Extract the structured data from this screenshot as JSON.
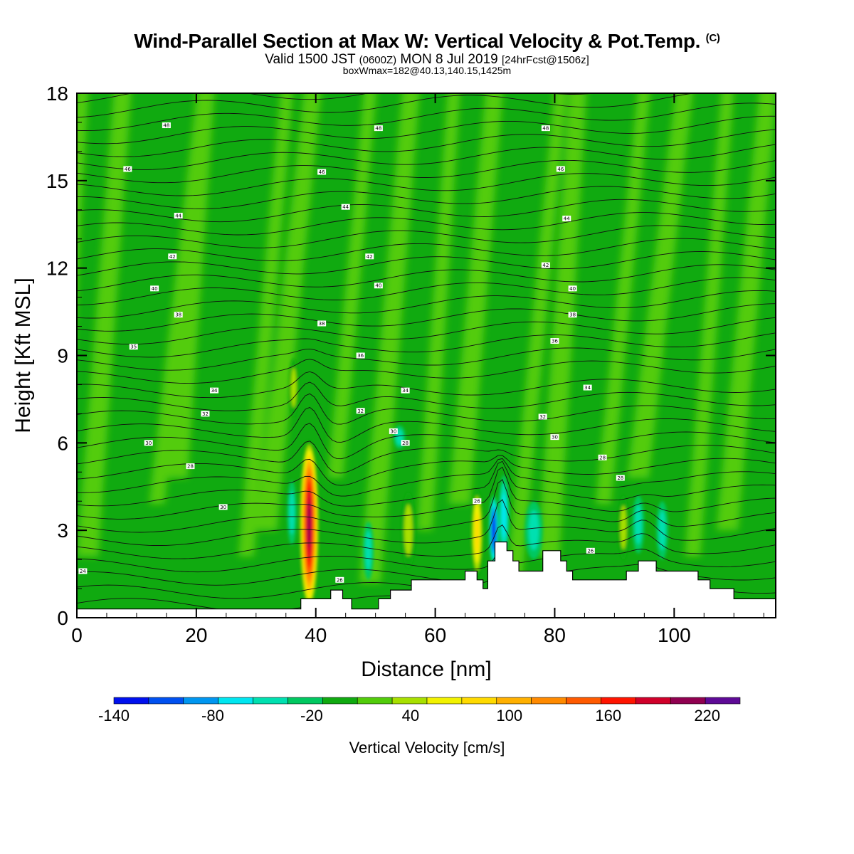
{
  "header": {
    "title": "Wind-Parallel Section at Max W: Vertical Velocity & Pot.Temp.",
    "title_mark": "(C)",
    "subtitle_a": "Valid 1500 JST",
    "subtitle_b": "(0600Z)",
    "subtitle_c": "MON 8 Jul 2019",
    "subtitle_d": "[24hrFcst@1506z]",
    "subtitle2": "boxWmax=182@40.13,140.15,1425m"
  },
  "chart_data": {
    "type": "heatmap",
    "xlabel": "Distance [nm]",
    "ylabel": "Height [Kft MSL]",
    "xlim": [
      0,
      117
    ],
    "ylim": [
      0,
      18
    ],
    "xticks": [
      0,
      20,
      40,
      60,
      80,
      100
    ],
    "yticks": [
      0,
      3,
      6,
      9,
      12,
      15,
      18
    ],
    "colorbar": {
      "title": "Vertical Velocity [cm/s]",
      "labels": [
        "-140",
        "-80",
        "-20",
        "40",
        "100",
        "160",
        "220"
      ],
      "label_values": [
        -140,
        -80,
        -20,
        40,
        100,
        160,
        220
      ],
      "min": -140,
      "max": 240,
      "step": 20,
      "colors": [
        "#0010ee",
        "#0050f0",
        "#0096f0",
        "#00e6f0",
        "#00e0b0",
        "#00c860",
        "#10aa10",
        "#52cc0a",
        "#a8e000",
        "#f2f200",
        "#ffda00",
        "#ffb000",
        "#ff8a00",
        "#ff5a00",
        "#ff1400",
        "#d0002a",
        "#900050",
        "#5e0a96"
      ]
    },
    "terrain": [
      [
        0,
        0.3
      ],
      [
        37.5,
        0.3
      ],
      [
        37.5,
        0.65
      ],
      [
        40.5,
        0.65
      ],
      [
        40.5,
        0.65
      ],
      [
        42.5,
        0.65
      ],
      [
        42.5,
        0.95
      ],
      [
        44.5,
        0.95
      ],
      [
        44.5,
        0.65
      ],
      [
        46,
        0.65
      ],
      [
        46,
        0.3
      ],
      [
        50.5,
        0.3
      ],
      [
        50.5,
        0.65
      ],
      [
        52.5,
        0.65
      ],
      [
        52.5,
        0.95
      ],
      [
        56,
        0.95
      ],
      [
        56,
        1.3
      ],
      [
        65,
        1.3
      ],
      [
        65,
        1.6
      ],
      [
        67,
        1.6
      ],
      [
        67,
        1.3
      ],
      [
        68,
        1.3
      ],
      [
        68,
        1.0
      ],
      [
        68.8,
        1.0
      ],
      [
        68.8,
        1.95
      ],
      [
        70,
        1.95
      ],
      [
        70,
        2.6
      ],
      [
        72,
        2.6
      ],
      [
        72,
        2.3
      ],
      [
        73,
        2.3
      ],
      [
        73,
        1.95
      ],
      [
        74,
        1.95
      ],
      [
        74,
        1.6
      ],
      [
        78,
        1.6
      ],
      [
        78,
        2.3
      ],
      [
        81,
        2.3
      ],
      [
        81,
        1.95
      ],
      [
        82,
        1.95
      ],
      [
        82,
        1.6
      ],
      [
        83,
        1.6
      ],
      [
        83,
        1.3
      ],
      [
        86,
        1.3
      ],
      [
        86,
        1.3
      ],
      [
        92,
        1.3
      ],
      [
        92,
        1.6
      ],
      [
        94,
        1.6
      ],
      [
        94,
        1.95
      ],
      [
        97,
        1.95
      ],
      [
        97,
        1.6
      ],
      [
        104,
        1.6
      ],
      [
        104,
        1.3
      ],
      [
        106,
        1.3
      ],
      [
        106,
        1.0
      ],
      [
        110,
        1.0
      ],
      [
        110,
        0.65
      ],
      [
        117,
        0.65
      ]
    ],
    "updrafts": [
      {
        "x": 38.9,
        "y": 3.2,
        "rx": 1.6,
        "ry": 2.9,
        "w": 182
      },
      {
        "x": 36.3,
        "y": 7.9,
        "rx": 0.8,
        "ry": 1.0,
        "w": 35
      },
      {
        "x": 67.0,
        "y": 2.9,
        "rx": 1.0,
        "ry": 1.5,
        "w": 60
      },
      {
        "x": 55.5,
        "y": 3.0,
        "rx": 1.2,
        "ry": 1.3,
        "w": 35
      },
      {
        "x": 91.5,
        "y": 3.1,
        "rx": 0.9,
        "ry": 1.1,
        "w": 30
      }
    ],
    "downdrafts": [
      {
        "x": 69.8,
        "y": 3.0,
        "rx": 0.8,
        "ry": 1.2,
        "w": -120
      },
      {
        "x": 71.5,
        "y": 3.5,
        "rx": 0.9,
        "ry": 1.4,
        "w": -70
      },
      {
        "x": 36.0,
        "y": 3.6,
        "rx": 0.8,
        "ry": 1.1,
        "w": -55
      },
      {
        "x": 48.8,
        "y": 2.3,
        "rx": 0.9,
        "ry": 1.0,
        "w": -40
      },
      {
        "x": 54.0,
        "y": 6.2,
        "rx": 1.0,
        "ry": 0.4,
        "w": -45
      },
      {
        "x": 76.5,
        "y": 3.0,
        "rx": 1.5,
        "ry": 1.0,
        "w": -45
      },
      {
        "x": 94.0,
        "y": 3.2,
        "rx": 1.0,
        "ry": 1.0,
        "w": -50
      },
      {
        "x": 98.0,
        "y": 3.0,
        "rx": 1.0,
        "ry": 1.0,
        "w": -45
      }
    ],
    "isentrope_labels": [
      {
        "text": "24",
        "x": 1.0,
        "y": 1.6
      },
      {
        "text": "26",
        "x": 67.0,
        "y": 4.0
      },
      {
        "text": "26",
        "x": 44.0,
        "y": 1.3
      },
      {
        "text": "26",
        "x": 86.0,
        "y": 2.3
      },
      {
        "text": "28",
        "x": 19.0,
        "y": 5.2
      },
      {
        "text": "28",
        "x": 55.0,
        "y": 6.0
      },
      {
        "text": "28",
        "x": 88.0,
        "y": 5.5
      },
      {
        "text": "28",
        "x": 91.0,
        "y": 4.8
      },
      {
        "text": "30",
        "x": 12.0,
        "y": 6.0
      },
      {
        "text": "30",
        "x": 53.0,
        "y": 6.4
      },
      {
        "text": "30",
        "x": 80.0,
        "y": 6.2
      },
      {
        "text": "30",
        "x": 24.5,
        "y": 3.8
      },
      {
        "text": "32",
        "x": 21.5,
        "y": 7.0
      },
      {
        "text": "32",
        "x": 47.5,
        "y": 7.1
      },
      {
        "text": "32",
        "x": 78.0,
        "y": 6.9
      },
      {
        "text": "34",
        "x": 23.0,
        "y": 7.8
      },
      {
        "text": "34",
        "x": 55.0,
        "y": 7.8
      },
      {
        "text": "34",
        "x": 85.5,
        "y": 7.9
      },
      {
        "text": "35",
        "x": 9.5,
        "y": 9.3
      },
      {
        "text": "36",
        "x": 47.5,
        "y": 9.0
      },
      {
        "text": "36",
        "x": 80.0,
        "y": 9.5
      },
      {
        "text": "38",
        "x": 17.0,
        "y": 10.4
      },
      {
        "text": "38",
        "x": 41.0,
        "y": 10.1
      },
      {
        "text": "38",
        "x": 83.0,
        "y": 10.4
      },
      {
        "text": "40",
        "x": 13.0,
        "y": 11.3
      },
      {
        "text": "40",
        "x": 50.5,
        "y": 11.4
      },
      {
        "text": "40",
        "x": 83.0,
        "y": 11.3
      },
      {
        "text": "42",
        "x": 16.0,
        "y": 12.4
      },
      {
        "text": "42",
        "x": 49.0,
        "y": 12.4
      },
      {
        "text": "42",
        "x": 78.5,
        "y": 12.1
      },
      {
        "text": "44",
        "x": 17.0,
        "y": 13.8
      },
      {
        "text": "44",
        "x": 45.0,
        "y": 14.1
      },
      {
        "text": "44",
        "x": 82.0,
        "y": 13.7
      },
      {
        "text": "46",
        "x": 8.5,
        "y": 15.4
      },
      {
        "text": "46",
        "x": 41.0,
        "y": 15.3
      },
      {
        "text": "46",
        "x": 81.0,
        "y": 15.4
      },
      {
        "text": "48",
        "x": 15.0,
        "y": 16.9
      },
      {
        "text": "48",
        "x": 50.5,
        "y": 16.8
      },
      {
        "text": "48",
        "x": 78.5,
        "y": 16.8
      }
    ]
  }
}
